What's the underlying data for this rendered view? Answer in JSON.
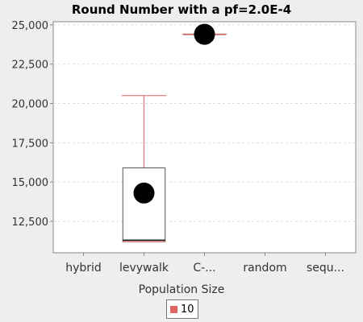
{
  "chart_data": {
    "type": "box",
    "title": "Round Number with a pf=2.0E-4",
    "xlabel": "Population Size",
    "ylabel": "",
    "ylim": [
      10500,
      25200
    ],
    "yticks": [
      12500,
      15000,
      17500,
      20000,
      22500,
      25000
    ],
    "ytick_labels": [
      "12,500",
      "15,000",
      "17,500",
      "20,000",
      "22,500",
      "25,000"
    ],
    "categories": [
      "hybrid",
      "levywalk",
      "C-...",
      "random",
      "sequ..."
    ],
    "grid": true,
    "legend_position": "bottom",
    "series": [
      {
        "name": "10",
        "color": "#e06666",
        "boxes": [
          null,
          {
            "min": 11200,
            "q1": 11200,
            "median": 11300,
            "q3": 15900,
            "max": 20500,
            "mean": 14300
          },
          {
            "min": 24400,
            "q1": 24400,
            "median": 24400,
            "q3": 24400,
            "max": 24400,
            "mean": 24400
          },
          null,
          null
        ]
      }
    ]
  }
}
